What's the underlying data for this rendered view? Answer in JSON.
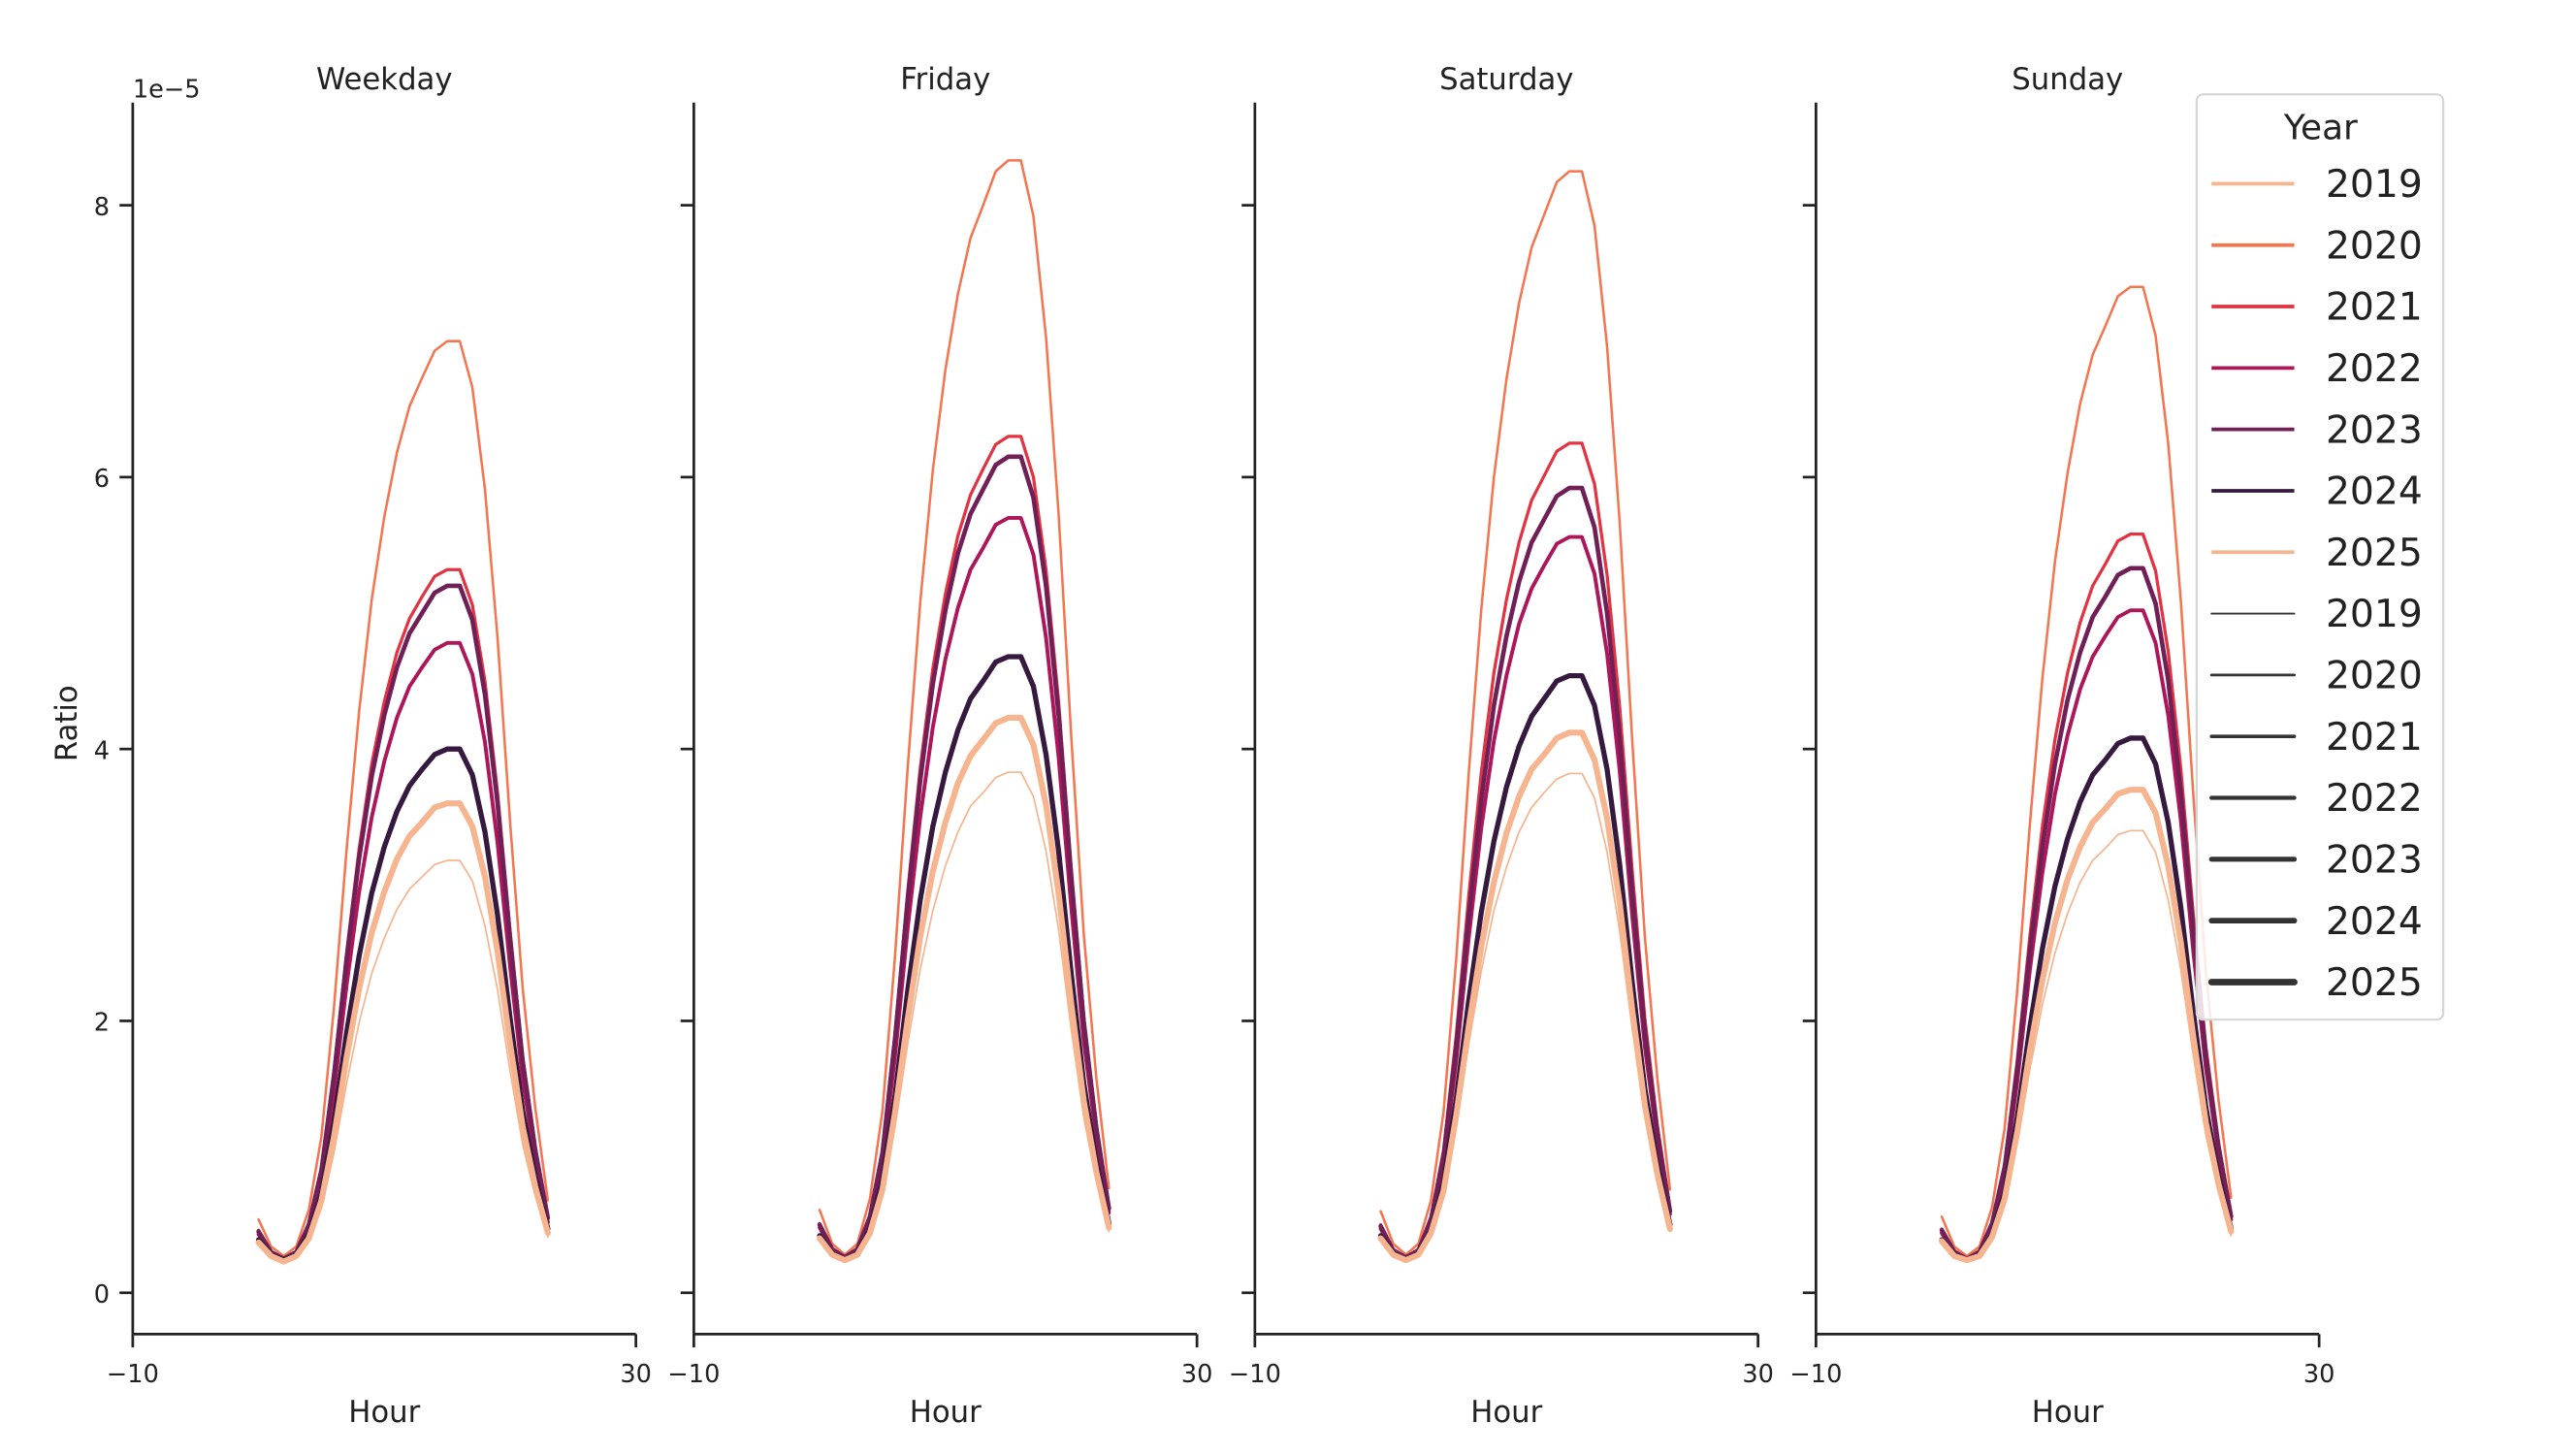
{
  "chart_data": {
    "type": "line",
    "xlabel": "Hour",
    "ylabel": "Ratio",
    "y_scale_label": "1e−5",
    "xlim": [
      -10,
      30
    ],
    "ylim": [
      -0.3,
      8.75
    ],
    "x_ticks": [
      -10,
      30
    ],
    "y_ticks": [
      0,
      2,
      4,
      6,
      8
    ],
    "grid": false,
    "legend": {
      "title": "Year",
      "placement": "top-right",
      "hue_entries": [
        "2019",
        "2020",
        "2021",
        "2022",
        "2023",
        "2024",
        "2025"
      ],
      "size_entries": [
        "2019",
        "2020",
        "2021",
        "2022",
        "2023",
        "2024",
        "2025"
      ]
    },
    "colors": {
      "2019": "#f6b48f",
      "2020": "#f37651",
      "2021": "#e13342",
      "2022": "#ad1759",
      "2023": "#701f57",
      "2024": "#35193e",
      "2025": "#f6b48f"
    },
    "size_legend_color": "#333333",
    "x": [
      0,
      1,
      2,
      3,
      4,
      5,
      6,
      7,
      8,
      9,
      10,
      11,
      12,
      13,
      14,
      15,
      16,
      17,
      18,
      19,
      20,
      21,
      22,
      23
    ],
    "panels": [
      {
        "title": "Weekday",
        "series": [
          {
            "name": "2019",
            "values": [
              0.35,
              0.26,
              0.23,
              0.26,
              0.38,
              0.62,
              1.03,
              1.54,
              1.99,
              2.35,
              2.61,
              2.82,
              2.97,
              3.06,
              3.15,
              3.18,
              3.18,
              3.03,
              2.7,
              2.23,
              1.63,
              1.09,
              0.71,
              0.41
            ]
          },
          {
            "name": "2020",
            "values": [
              0.54,
              0.34,
              0.27,
              0.34,
              0.61,
              1.15,
              2.1,
              3.26,
              4.28,
              5.1,
              5.71,
              6.18,
              6.52,
              6.73,
              6.93,
              7.0,
              7.0,
              6.66,
              5.91,
              4.82,
              3.46,
              2.24,
              1.36,
              0.68
            ]
          },
          {
            "name": "2021",
            "values": [
              0.46,
              0.3,
              0.25,
              0.3,
              0.51,
              0.92,
              1.63,
              2.5,
              3.27,
              3.89,
              4.35,
              4.71,
              4.96,
              5.12,
              5.27,
              5.32,
              5.32,
              5.06,
              4.5,
              3.68,
              2.66,
              1.74,
              1.07,
              0.56
            ]
          },
          {
            "name": "2022",
            "values": [
              0.43,
              0.29,
              0.25,
              0.29,
              0.47,
              0.84,
              1.48,
              2.26,
              2.95,
              3.5,
              3.91,
              4.23,
              4.46,
              4.6,
              4.73,
              4.78,
              4.78,
              4.55,
              4.05,
              3.31,
              2.4,
              1.57,
              0.98,
              0.52
            ]
          },
          {
            "name": "2023",
            "values": [
              0.45,
              0.3,
              0.25,
              0.3,
              0.5,
              0.9,
              1.6,
              2.45,
              3.2,
              3.8,
              4.25,
              4.6,
              4.85,
              5.0,
              5.15,
              5.2,
              5.2,
              4.95,
              4.4,
              3.6,
              2.6,
              1.7,
              1.05,
              0.55
            ]
          },
          {
            "name": "2024",
            "values": [
              0.39,
              0.28,
              0.24,
              0.28,
              0.43,
              0.73,
              1.26,
              1.91,
              2.48,
              2.94,
              3.28,
              3.54,
              3.73,
              3.85,
              3.96,
              4.0,
              4.0,
              3.81,
              3.39,
              2.78,
              2.02,
              1.34,
              0.85,
              0.47
            ]
          },
          {
            "name": "2025",
            "values": [
              0.37,
              0.27,
              0.23,
              0.27,
              0.4,
              0.68,
              1.15,
              1.73,
              2.24,
              2.65,
              2.95,
              3.19,
              3.36,
              3.46,
              3.57,
              3.6,
              3.6,
              3.43,
              3.06,
              2.51,
              1.83,
              1.22,
              0.78,
              0.44
            ]
          }
        ]
      },
      {
        "title": "Friday",
        "series": [
          {
            "name": "2019",
            "values": [
              0.38,
              0.27,
              0.24,
              0.27,
              0.42,
              0.71,
              1.22,
              1.83,
              2.38,
              2.81,
              3.14,
              3.39,
              3.58,
              3.68,
              3.79,
              3.83,
              3.83,
              3.65,
              3.25,
              2.67,
              1.94,
              1.29,
              0.82,
              0.45
            ]
          },
          {
            "name": "2020",
            "values": [
              0.61,
              0.36,
              0.28,
              0.36,
              0.69,
              1.34,
              2.48,
              3.86,
              5.08,
              6.05,
              6.79,
              7.35,
              7.76,
              8.0,
              8.25,
              8.33,
              8.33,
              7.92,
              7.03,
              5.73,
              4.1,
              2.64,
              1.58,
              0.77
            ]
          },
          {
            "name": "2021",
            "values": [
              0.51,
              0.32,
              0.26,
              0.32,
              0.57,
              1.05,
              1.91,
              2.95,
              3.86,
              4.59,
              5.14,
              5.57,
              5.87,
              6.06,
              6.24,
              6.3,
              6.3,
              6.0,
              5.32,
              4.35,
              3.13,
              2.03,
              1.24,
              0.63
            ]
          },
          {
            "name": "2022",
            "values": [
              0.48,
              0.31,
              0.26,
              0.31,
              0.53,
              0.97,
              1.74,
              2.68,
              3.5,
              4.16,
              4.66,
              5.04,
              5.32,
              5.48,
              5.65,
              5.7,
              5.7,
              5.43,
              4.82,
              3.94,
              2.84,
              1.85,
              1.14,
              0.59
            ]
          },
          {
            "name": "2023",
            "values": [
              0.5,
              0.32,
              0.26,
              0.32,
              0.56,
              1.03,
              1.87,
              2.88,
              3.77,
              4.48,
              5.02,
              5.44,
              5.73,
              5.91,
              6.09,
              6.15,
              6.15,
              5.85,
              5.2,
              4.25,
              3.06,
              1.99,
              1.21,
              0.62
            ]
          },
          {
            "name": "2024",
            "values": [
              0.42,
              0.29,
              0.24,
              0.29,
              0.47,
              0.83,
              1.45,
              2.22,
              2.89,
              3.43,
              3.83,
              4.14,
              4.37,
              4.5,
              4.64,
              4.68,
              4.68,
              4.46,
              3.96,
              3.25,
              2.35,
              1.54,
              0.96,
              0.51
            ]
          },
          {
            "name": "2025",
            "values": [
              0.4,
              0.28,
              0.24,
              0.28,
              0.44,
              0.76,
              1.33,
              2.01,
              2.62,
              3.1,
              3.46,
              3.75,
              3.95,
              4.07,
              4.19,
              4.23,
              4.23,
              4.03,
              3.59,
              2.94,
              2.13,
              1.41,
              0.89,
              0.48
            ]
          }
        ]
      },
      {
        "title": "Saturday",
        "series": [
          {
            "name": "2019",
            "values": [
              0.38,
              0.27,
              0.24,
              0.27,
              0.42,
              0.71,
              1.21,
              1.83,
              2.37,
              2.81,
              3.13,
              3.39,
              3.57,
              3.68,
              3.78,
              3.82,
              3.82,
              3.64,
              3.24,
              2.66,
              1.94,
              1.29,
              0.82,
              0.45
            ]
          },
          {
            "name": "2020",
            "values": [
              0.6,
              0.36,
              0.28,
              0.36,
              0.68,
              1.33,
              2.45,
              3.82,
              5.03,
              6.0,
              6.72,
              7.28,
              7.69,
              7.93,
              8.17,
              8.25,
              8.25,
              7.85,
              6.96,
              5.67,
              4.06,
              2.62,
              1.57,
              0.76
            ]
          },
          {
            "name": "2021",
            "values": [
              0.5,
              0.32,
              0.26,
              0.32,
              0.56,
              1.05,
              1.89,
              2.92,
              3.83,
              4.56,
              5.1,
              5.52,
              5.83,
              6.01,
              6.19,
              6.25,
              6.25,
              5.95,
              5.28,
              4.31,
              3.1,
              2.02,
              1.23,
              0.62
            ]
          },
          {
            "name": "2022",
            "values": [
              0.47,
              0.31,
              0.25,
              0.31,
              0.52,
              0.95,
              1.7,
              2.61,
              3.42,
              4.06,
              4.54,
              4.92,
              5.18,
              5.35,
              5.51,
              5.56,
              5.56,
              5.29,
              4.7,
              3.84,
              2.77,
              1.81,
              1.11,
              0.58
            ]
          },
          {
            "name": "2023",
            "values": [
              0.49,
              0.31,
              0.26,
              0.31,
              0.54,
              1.0,
              1.8,
              2.77,
              3.63,
              4.32,
              4.83,
              5.23,
              5.52,
              5.69,
              5.86,
              5.92,
              5.92,
              5.63,
              5.0,
              4.09,
              2.95,
              1.92,
              1.17,
              0.6
            ]
          },
          {
            "name": "2024",
            "values": [
              0.42,
              0.29,
              0.24,
              0.29,
              0.46,
              0.81,
              1.42,
              2.15,
              2.8,
              3.32,
              3.72,
              4.02,
              4.24,
              4.37,
              4.5,
              4.54,
              4.54,
              4.32,
              3.85,
              3.15,
              2.28,
              1.5,
              0.94,
              0.5
            ]
          },
          {
            "name": "2025",
            "values": [
              0.4,
              0.28,
              0.24,
              0.28,
              0.44,
              0.75,
              1.3,
              1.96,
              2.55,
              3.02,
              3.38,
              3.65,
              3.85,
              3.96,
              4.08,
              4.12,
              4.12,
              3.92,
              3.49,
              2.87,
              2.08,
              1.38,
              0.87,
              0.47
            ]
          }
        ]
      },
      {
        "title": "Sunday",
        "series": [
          {
            "name": "2019",
            "values": [
              0.36,
              0.26,
              0.23,
              0.26,
              0.39,
              0.65,
              1.1,
              1.64,
              2.12,
              2.5,
              2.79,
              3.02,
              3.18,
              3.27,
              3.37,
              3.4,
              3.4,
              3.24,
              2.89,
              2.38,
              1.74,
              1.16,
              0.74,
              0.42
            ]
          },
          {
            "name": "2020",
            "values": [
              0.56,
              0.34,
              0.27,
              0.34,
              0.63,
              1.21,
              2.22,
              3.44,
              4.52,
              5.38,
              6.03,
              6.54,
              6.9,
              7.11,
              7.33,
              7.4,
              7.4,
              7.04,
              6.25,
              5.1,
              3.66,
              2.36,
              1.42,
              0.7
            ]
          },
          {
            "name": "2021",
            "values": [
              0.47,
              0.31,
              0.25,
              0.31,
              0.52,
              0.95,
              1.71,
              2.62,
              3.43,
              4.07,
              4.56,
              4.93,
              5.2,
              5.36,
              5.53,
              5.58,
              5.58,
              5.31,
              4.72,
              3.86,
              2.78,
              1.81,
              1.11,
              0.58
            ]
          },
          {
            "name": "2022",
            "values": [
              0.44,
              0.3,
              0.25,
              0.3,
              0.49,
              0.87,
              1.55,
              2.37,
              3.09,
              3.67,
              4.1,
              4.44,
              4.68,
              4.83,
              4.97,
              5.02,
              5.02,
              4.78,
              4.25,
              3.48,
              2.51,
              1.65,
              1.02,
              0.54
            ]
          },
          {
            "name": "2023",
            "values": [
              0.46,
              0.3,
              0.25,
              0.3,
              0.51,
              0.92,
              1.64,
              2.51,
              3.28,
              3.89,
              4.36,
              4.71,
              4.97,
              5.12,
              5.28,
              5.33,
              5.33,
              5.07,
              4.51,
              3.69,
              2.66,
              1.74,
              1.07,
              0.56
            ]
          },
          {
            "name": "2024",
            "values": [
              0.39,
              0.28,
              0.24,
              0.28,
              0.43,
              0.74,
              1.29,
              1.95,
              2.53,
              2.99,
              3.34,
              3.61,
              3.81,
              3.92,
              4.04,
              4.08,
              4.08,
              3.89,
              3.46,
              2.84,
              2.06,
              1.36,
              0.86,
              0.47
            ]
          },
          {
            "name": "2025",
            "values": [
              0.38,
              0.27,
              0.24,
              0.27,
              0.41,
              0.69,
              1.18,
              1.78,
              2.3,
              2.72,
              3.04,
              3.28,
              3.46,
              3.56,
              3.67,
              3.7,
              3.7,
              3.53,
              3.14,
              2.58,
              1.88,
              1.25,
              0.8,
              0.45
            ]
          }
        ]
      }
    ]
  }
}
